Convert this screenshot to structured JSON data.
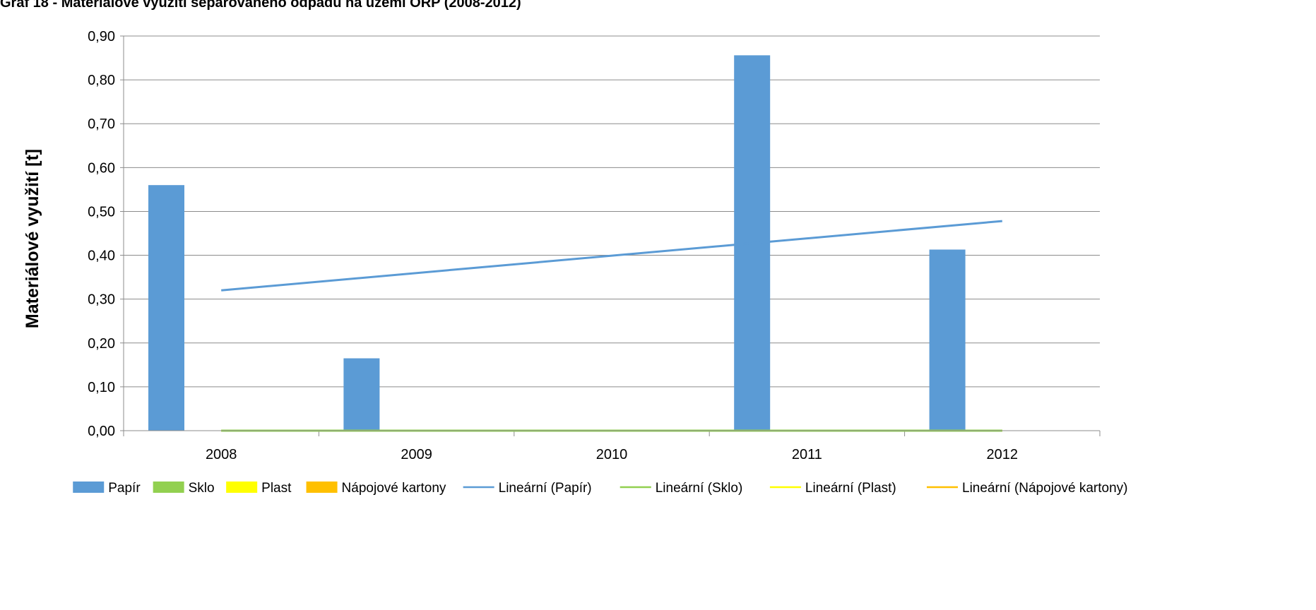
{
  "chart_data": {
    "type": "bar",
    "title": "Graf 18 - Materiálové využití separovaného odpadu na území ORP (2008-2012)",
    "xlabel": "",
    "ylabel": "Materiálové využití [t]",
    "categories": [
      "2008",
      "2009",
      "2010",
      "2011",
      "2012"
    ],
    "ylim": [
      0,
      0.9
    ],
    "yticks": [
      "0,00",
      "0,10",
      "0,20",
      "0,30",
      "0,40",
      "0,50",
      "0,60",
      "0,70",
      "0,80",
      "0,90"
    ],
    "grid": true,
    "legend_position": "bottom",
    "series": [
      {
        "name": "Papír",
        "kind": "bar",
        "color": "#5B9BD5",
        "values": [
          0.56,
          0.165,
          0,
          0.856,
          0.413
        ]
      },
      {
        "name": "Sklo",
        "kind": "bar",
        "color": "#92D050",
        "values": [
          0,
          0,
          0,
          0,
          0
        ]
      },
      {
        "name": "Plast",
        "kind": "bar",
        "color": "#FFFF00",
        "values": [
          0,
          0,
          0,
          0,
          0
        ]
      },
      {
        "name": "Nápojové kartony",
        "kind": "bar",
        "color": "#FFC000",
        "values": [
          0,
          0,
          0,
          0,
          0
        ]
      }
    ],
    "trendlines": [
      {
        "name": "Lineární (Papír)",
        "color": "#5B9BD5",
        "start": 0.32,
        "end": 0.478
      },
      {
        "name": "Lineární (Sklo)",
        "color": "#92D050",
        "start": 0,
        "end": 0
      },
      {
        "name": "Lineární (Plast)",
        "color": "#FFFF00",
        "start": 0,
        "end": 0
      },
      {
        "name": "Lineární (Nápojové kartony)",
        "color": "#FFC000",
        "start": 0,
        "end": 0
      }
    ]
  }
}
